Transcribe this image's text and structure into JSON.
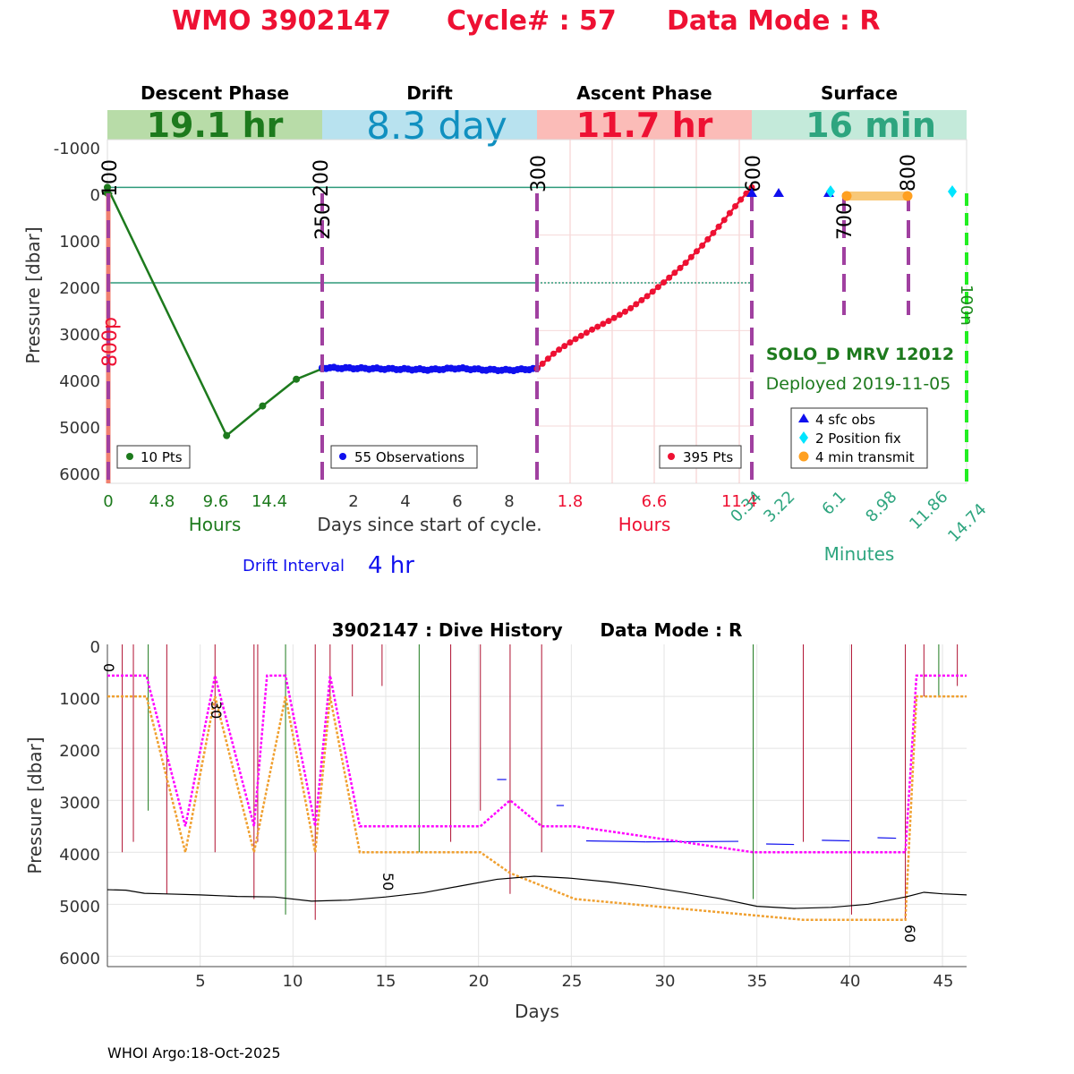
{
  "title": {
    "wmo": "WMO 3902147",
    "cycle": "Cycle# : 57",
    "mode": "Data Mode : R",
    "color": "#ee1133"
  },
  "top_chart": {
    "phases": [
      {
        "name": "Descent Phase",
        "duration": "19.1 hr",
        "bg": "#b8dca8",
        "fg": "#1d7a1d"
      },
      {
        "name": "Drift",
        "duration": "8.3 day",
        "bg": "#b8e2ef",
        "fg": "#1090c0"
      },
      {
        "name": "Ascent Phase",
        "duration": "11.7 hr",
        "bg": "#fbbcb8",
        "fg": "#ee1133"
      },
      {
        "name": "Surface",
        "duration": "16 min",
        "bg": "#c4eada",
        "fg": "#2ea57f"
      }
    ],
    "ylabel": "Pressure [dbar]",
    "y_ticks": [
      "-1000",
      "0",
      "1000",
      "2000",
      "3000",
      "4000",
      "5000",
      "6000"
    ],
    "x_ticks": {
      "descent": [
        "0",
        "4.8",
        "9.6",
        "14.4"
      ],
      "drift": [
        "2",
        "4",
        "6",
        "8"
      ],
      "ascent": [
        "1.8",
        "6.6",
        "11.4"
      ],
      "surface": [
        "0.34",
        "3.22",
        "6.1",
        "8.98",
        "11.86",
        "14.74"
      ]
    },
    "x_axis_labels": {
      "descent": "Hours",
      "drift": "Days since start of cycle.",
      "ascent": "Hours",
      "surface": "Minutes"
    },
    "drift_interval_label": "Drift Interval",
    "drift_interval_value": "4 hr",
    "legends": {
      "descent": "10 Pts",
      "drift": "55 Observations",
      "ascent": "395 Pts",
      "surface": [
        "4 sfc obs",
        "2 Position fix",
        "4 min transmit"
      ]
    },
    "marker_labels": {
      "m100": "100",
      "m200": "200",
      "m250": "250",
      "m300": "300",
      "m600": "600",
      "m700": "700",
      "m800": "800",
      "m800p": "800p",
      "m100n": "100n"
    },
    "float_name": "SOLO_D MRV 12012",
    "deployed": "Deployed 2019-11-05"
  },
  "chart_data": [
    {
      "type": "line",
      "title": "",
      "panels": [
        {
          "name": "Descent",
          "xlabel": "Hours",
          "xlim": [
            0,
            19.1
          ],
          "x": [
            0,
            10.6,
            13.8,
            16.8,
            19.1
          ],
          "y": [
            0,
            5200,
            4580,
            4020,
            3800
          ]
        },
        {
          "name": "Drift",
          "xlabel": "Days since start of cycle.",
          "xlim": [
            0.8,
            9.1
          ],
          "x": [
            0.8,
            2,
            3,
            4,
            5,
            6,
            7,
            8,
            9.1
          ],
          "y": [
            3780,
            3790,
            3800,
            3810,
            3820,
            3790,
            3820,
            3830,
            3800
          ]
        },
        {
          "name": "Ascent",
          "xlabel": "Hours",
          "xlim": [
            0,
            11.7
          ],
          "x": [
            0,
            1,
            2,
            3,
            4,
            5,
            6,
            7,
            8,
            9,
            10,
            11,
            11.7
          ],
          "y": [
            3800,
            3450,
            3200,
            2980,
            2780,
            2560,
            2280,
            1960,
            1620,
            1220,
            780,
            300,
            0
          ]
        }
      ],
      "ylim": [
        6200,
        -1000
      ],
      "ylabel": "Pressure [dbar]"
    },
    {
      "type": "line",
      "title": "3902147 : Dive History      Data Mode : R",
      "xlabel": "Days",
      "ylabel": "Pressure [dbar]",
      "xlim": [
        0,
        46.3
      ],
      "ylim": [
        6200,
        0
      ],
      "x_ticks": [
        "5",
        "10",
        "15",
        "20",
        "25",
        "30",
        "35",
        "40",
        "45"
      ],
      "y_ticks": [
        "0",
        "1000",
        "2000",
        "3000",
        "4000",
        "5000",
        "6000"
      ],
      "cycle_labels": [
        "0",
        "30",
        "50",
        "60"
      ],
      "series": [
        {
          "color": "#ff00ff",
          "x": [
            0,
            2.1,
            4.2,
            5.8,
            7.9,
            8.6,
            9.6,
            11.2,
            12.0,
            13.6,
            20.1,
            21.7,
            23.4,
            25.2,
            34.8,
            43.0,
            43.6,
            46.3
          ],
          "y": [
            600,
            600,
            3500,
            600,
            3500,
            600,
            600,
            3500,
            600,
            3500,
            3500,
            3000,
            3500,
            3500,
            4000,
            4000,
            600,
            600
          ]
        },
        {
          "color": "#f0a030",
          "x": [
            0,
            2.1,
            4.2,
            5.8,
            7.9,
            9.6,
            11.2,
            12.0,
            13.6,
            20.1,
            21.7,
            25.2,
            37.5,
            43.0,
            43.6,
            46.3
          ],
          "y": [
            1000,
            1000,
            4000,
            1000,
            4000,
            1000,
            4000,
            1000,
            4000,
            4000,
            4400,
            4900,
            5300,
            5300,
            1000,
            1000
          ]
        },
        {
          "color": "#000000",
          "x": [
            0,
            1,
            2,
            3,
            5,
            7,
            9,
            11,
            13,
            15,
            17,
            19,
            21,
            23,
            25,
            27,
            29,
            31,
            33,
            35,
            37,
            39,
            41,
            43,
            44,
            45,
            46.3
          ],
          "y": [
            4720,
            4730,
            4790,
            4800,
            4820,
            4850,
            4860,
            4940,
            4920,
            4860,
            4780,
            4650,
            4520,
            4460,
            4500,
            4570,
            4660,
            4770,
            4890,
            5040,
            5080,
            5060,
            5000,
            4860,
            4770,
            4800,
            4820
          ]
        }
      ]
    }
  ],
  "footer": "WHOI Argo:18-Oct-2025"
}
